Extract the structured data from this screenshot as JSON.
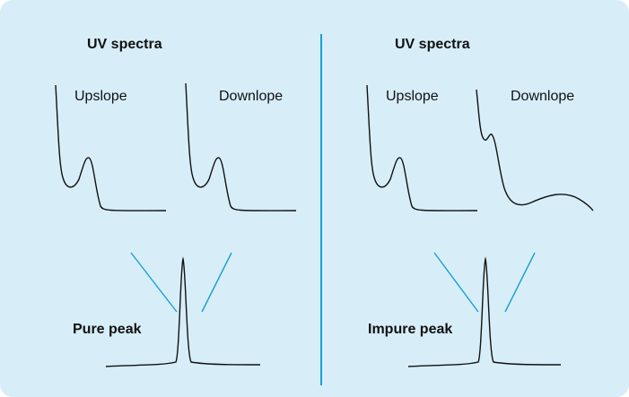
{
  "panels": [
    {
      "title": "UV spectra",
      "upslope": "Upslope",
      "downslope": "Downlope",
      "peak": "Pure peak"
    },
    {
      "title": "UV spectra",
      "upslope": "Upslope",
      "downslope": "Downlope",
      "peak": "Impure peak"
    }
  ]
}
